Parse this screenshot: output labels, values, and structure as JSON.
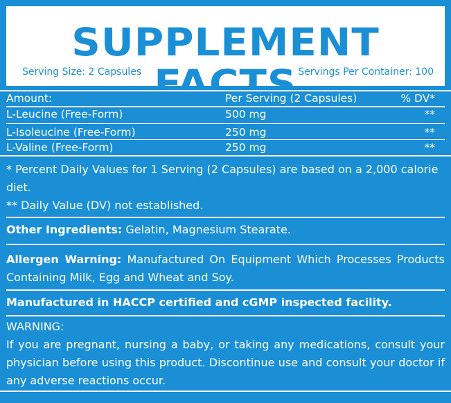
{
  "header": {
    "title": "SUPPLEMENT FACTS",
    "serving_size": "Serving Size: 2 Capsules",
    "servings_per_container": "Servings Per Container: 100"
  },
  "table": {
    "headers": {
      "amount": "Amount:",
      "per_serving": "Per Serving (2 Capsules)",
      "dv": "% DV*"
    },
    "rows": [
      {
        "name": "L-Leucine (Free-Form)",
        "amount": "500 mg",
        "dv": "**"
      },
      {
        "name": "L-Isoleucine (Free-Form)",
        "amount": "250 mg",
        "dv": "**"
      },
      {
        "name": "L-Valine (Free-Form)",
        "amount": "250 mg",
        "dv": "**"
      }
    ]
  },
  "footnotes": {
    "daily_values": "* Percent Daily Values for 1 Serving (2 Capsules) are based on a 2,000 calorie diet.",
    "not_established": "** Daily Value (DV) not established."
  },
  "other_ingredients": {
    "label": "Other Ingredients:",
    "text": " Gelatin, Magnesium Stearate."
  },
  "allergen": {
    "label": "Allergen Warning:",
    "text": " Manufactured On Equipment Which Processes Products Containing Milk, Egg and Wheat and Soy."
  },
  "manufactured": "Manufactured in HACCP certified and cGMP inspected facility.",
  "warning": {
    "label": "WARNING:",
    "text": "If you are pregnant, nursing a baby, or taking any medications, consult your physician before using this product. Discontinue use and consult your doctor if any adverse reactions occur."
  },
  "colors": {
    "background": "#1a8fd6",
    "panel": "#ffffff"
  }
}
